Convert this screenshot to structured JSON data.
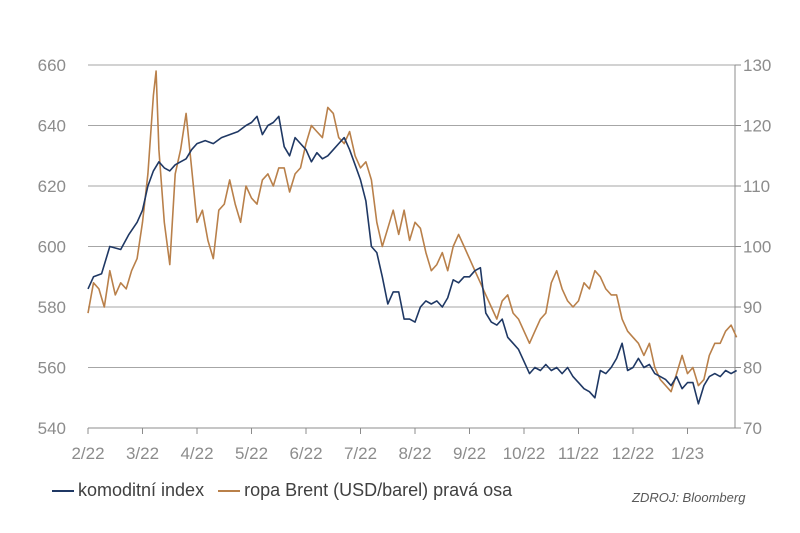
{
  "chart_data": {
    "type": "line",
    "x_labels": [
      "2/22",
      "3/22",
      "4/22",
      "5/22",
      "6/22",
      "7/22",
      "8/22",
      "9/22",
      "10/22",
      "11/22",
      "12/22",
      "1/23"
    ],
    "y_left": {
      "ticks": [
        540,
        560,
        580,
        600,
        620,
        640,
        660
      ],
      "lim": [
        540,
        660
      ]
    },
    "y_right": {
      "ticks": [
        70,
        80,
        90,
        100,
        110,
        120,
        130
      ],
      "lim": [
        70,
        130
      ]
    },
    "grid": true,
    "legend_position": "bottom-left",
    "colors": {
      "komodity": "#1f3864",
      "brent": "#b9804a",
      "grid": "#a6a6a6"
    },
    "series": [
      {
        "name": "komoditní index",
        "axis": "left",
        "points": [
          [
            0.0,
            586
          ],
          [
            0.1,
            590
          ],
          [
            0.25,
            591
          ],
          [
            0.4,
            600
          ],
          [
            0.6,
            599
          ],
          [
            0.75,
            604
          ],
          [
            0.9,
            608
          ],
          [
            1.0,
            612
          ],
          [
            1.1,
            620
          ],
          [
            1.2,
            625
          ],
          [
            1.3,
            628
          ],
          [
            1.4,
            626
          ],
          [
            1.5,
            625
          ],
          [
            1.6,
            627
          ],
          [
            1.7,
            628
          ],
          [
            1.8,
            629
          ],
          [
            1.9,
            632
          ],
          [
            2.0,
            634
          ],
          [
            2.15,
            635
          ],
          [
            2.3,
            634
          ],
          [
            2.45,
            636
          ],
          [
            2.6,
            637
          ],
          [
            2.75,
            638
          ],
          [
            2.9,
            640
          ],
          [
            3.0,
            641
          ],
          [
            3.1,
            643
          ],
          [
            3.2,
            637
          ],
          [
            3.3,
            640
          ],
          [
            3.4,
            641
          ],
          [
            3.5,
            643
          ],
          [
            3.6,
            633
          ],
          [
            3.7,
            630
          ],
          [
            3.8,
            636
          ],
          [
            3.9,
            634
          ],
          [
            4.0,
            632
          ],
          [
            4.1,
            628
          ],
          [
            4.2,
            631
          ],
          [
            4.3,
            629
          ],
          [
            4.4,
            630
          ],
          [
            4.5,
            632
          ],
          [
            4.6,
            634
          ],
          [
            4.7,
            636
          ],
          [
            4.8,
            632
          ],
          [
            4.9,
            627
          ],
          [
            5.0,
            622
          ],
          [
            5.1,
            615
          ],
          [
            5.2,
            600
          ],
          [
            5.3,
            598
          ],
          [
            5.4,
            590
          ],
          [
            5.5,
            581
          ],
          [
            5.6,
            585
          ],
          [
            5.7,
            585
          ],
          [
            5.8,
            576
          ],
          [
            5.9,
            576
          ],
          [
            6.0,
            575
          ],
          [
            6.1,
            580
          ],
          [
            6.2,
            582
          ],
          [
            6.3,
            581
          ],
          [
            6.4,
            582
          ],
          [
            6.5,
            580
          ],
          [
            6.6,
            583
          ],
          [
            6.7,
            589
          ],
          [
            6.8,
            588
          ],
          [
            6.9,
            590
          ],
          [
            7.0,
            590
          ],
          [
            7.1,
            592
          ],
          [
            7.2,
            593
          ],
          [
            7.3,
            578
          ],
          [
            7.4,
            575
          ],
          [
            7.5,
            574
          ],
          [
            7.6,
            576
          ],
          [
            7.7,
            570
          ],
          [
            7.8,
            568
          ],
          [
            7.9,
            566
          ],
          [
            8.0,
            562
          ],
          [
            8.1,
            558
          ],
          [
            8.2,
            560
          ],
          [
            8.3,
            559
          ],
          [
            8.4,
            561
          ],
          [
            8.5,
            559
          ],
          [
            8.6,
            560
          ],
          [
            8.7,
            558
          ],
          [
            8.8,
            560
          ],
          [
            8.9,
            557
          ],
          [
            9.0,
            555
          ],
          [
            9.1,
            553
          ],
          [
            9.2,
            552
          ],
          [
            9.3,
            550
          ],
          [
            9.4,
            559
          ],
          [
            9.5,
            558
          ],
          [
            9.6,
            560
          ],
          [
            9.7,
            563
          ],
          [
            9.8,
            568
          ],
          [
            9.9,
            559
          ],
          [
            10.0,
            560
          ],
          [
            10.1,
            563
          ],
          [
            10.2,
            560
          ],
          [
            10.3,
            561
          ],
          [
            10.4,
            558
          ],
          [
            10.5,
            557
          ],
          [
            10.6,
            556
          ],
          [
            10.7,
            554
          ],
          [
            10.8,
            557
          ],
          [
            10.9,
            553
          ],
          [
            11.0,
            555
          ],
          [
            11.1,
            555
          ],
          [
            11.2,
            548
          ],
          [
            11.3,
            554
          ],
          [
            11.4,
            557
          ],
          [
            11.5,
            558
          ],
          [
            11.6,
            557
          ],
          [
            11.7,
            559
          ],
          [
            11.8,
            558
          ],
          [
            11.9,
            559
          ]
        ]
      },
      {
        "name": "ropa Brent (USD/barel) pravá osa",
        "axis": "right",
        "points": [
          [
            0.0,
            89
          ],
          [
            0.1,
            94
          ],
          [
            0.2,
            93
          ],
          [
            0.3,
            90
          ],
          [
            0.4,
            96
          ],
          [
            0.5,
            92
          ],
          [
            0.6,
            94
          ],
          [
            0.7,
            93
          ],
          [
            0.8,
            96
          ],
          [
            0.9,
            98
          ],
          [
            1.0,
            104
          ],
          [
            1.1,
            112
          ],
          [
            1.2,
            125
          ],
          [
            1.25,
            129
          ],
          [
            1.3,
            116
          ],
          [
            1.4,
            104
          ],
          [
            1.5,
            97
          ],
          [
            1.6,
            112
          ],
          [
            1.7,
            116
          ],
          [
            1.8,
            122
          ],
          [
            1.9,
            113
          ],
          [
            2.0,
            104
          ],
          [
            2.1,
            106
          ],
          [
            2.2,
            101
          ],
          [
            2.3,
            98
          ],
          [
            2.4,
            106
          ],
          [
            2.5,
            107
          ],
          [
            2.6,
            111
          ],
          [
            2.7,
            107
          ],
          [
            2.8,
            104
          ],
          [
            2.9,
            110
          ],
          [
            3.0,
            108
          ],
          [
            3.1,
            107
          ],
          [
            3.2,
            111
          ],
          [
            3.3,
            112
          ],
          [
            3.4,
            110
          ],
          [
            3.5,
            113
          ],
          [
            3.6,
            113
          ],
          [
            3.7,
            109
          ],
          [
            3.8,
            112
          ],
          [
            3.9,
            113
          ],
          [
            4.0,
            117
          ],
          [
            4.1,
            120
          ],
          [
            4.2,
            119
          ],
          [
            4.3,
            118
          ],
          [
            4.4,
            123
          ],
          [
            4.5,
            122
          ],
          [
            4.6,
            118
          ],
          [
            4.7,
            117
          ],
          [
            4.8,
            119
          ],
          [
            4.9,
            115
          ],
          [
            5.0,
            113
          ],
          [
            5.1,
            114
          ],
          [
            5.2,
            111
          ],
          [
            5.3,
            104
          ],
          [
            5.4,
            100
          ],
          [
            5.5,
            103
          ],
          [
            5.6,
            106
          ],
          [
            5.7,
            102
          ],
          [
            5.8,
            106
          ],
          [
            5.9,
            101
          ],
          [
            6.0,
            104
          ],
          [
            6.1,
            103
          ],
          [
            6.2,
            99
          ],
          [
            6.3,
            96
          ],
          [
            6.4,
            97
          ],
          [
            6.5,
            99
          ],
          [
            6.6,
            96
          ],
          [
            6.7,
            100
          ],
          [
            6.8,
            102
          ],
          [
            6.9,
            100
          ],
          [
            7.0,
            98
          ],
          [
            7.1,
            96
          ],
          [
            7.2,
            94
          ],
          [
            7.3,
            92
          ],
          [
            7.4,
            90
          ],
          [
            7.5,
            88
          ],
          [
            7.6,
            91
          ],
          [
            7.7,
            92
          ],
          [
            7.8,
            89
          ],
          [
            7.9,
            88
          ],
          [
            8.0,
            86
          ],
          [
            8.1,
            84
          ],
          [
            8.2,
            86
          ],
          [
            8.3,
            88
          ],
          [
            8.4,
            89
          ],
          [
            8.5,
            94
          ],
          [
            8.6,
            96
          ],
          [
            8.7,
            93
          ],
          [
            8.8,
            91
          ],
          [
            8.9,
            90
          ],
          [
            9.0,
            91
          ],
          [
            9.1,
            94
          ],
          [
            9.2,
            93
          ],
          [
            9.3,
            96
          ],
          [
            9.4,
            95
          ],
          [
            9.5,
            93
          ],
          [
            9.6,
            92
          ],
          [
            9.7,
            92
          ],
          [
            9.8,
            88
          ],
          [
            9.9,
            86
          ],
          [
            10.0,
            85
          ],
          [
            10.1,
            84
          ],
          [
            10.2,
            82
          ],
          [
            10.3,
            84
          ],
          [
            10.4,
            80
          ],
          [
            10.5,
            78
          ],
          [
            10.6,
            77
          ],
          [
            10.7,
            76
          ],
          [
            10.8,
            79
          ],
          [
            10.9,
            82
          ],
          [
            11.0,
            79
          ],
          [
            11.1,
            80
          ],
          [
            11.2,
            77
          ],
          [
            11.3,
            78
          ],
          [
            11.4,
            82
          ],
          [
            11.5,
            84
          ],
          [
            11.6,
            84
          ],
          [
            11.7,
            86
          ],
          [
            11.8,
            87
          ],
          [
            11.9,
            85
          ]
        ]
      }
    ]
  },
  "legend": [
    {
      "label": "komoditní index",
      "color": "#1f3864"
    },
    {
      "label": "ropa Brent (USD/barel) pravá osa",
      "color": "#b9804a"
    }
  ],
  "source": "ZDROJ: Bloomberg"
}
